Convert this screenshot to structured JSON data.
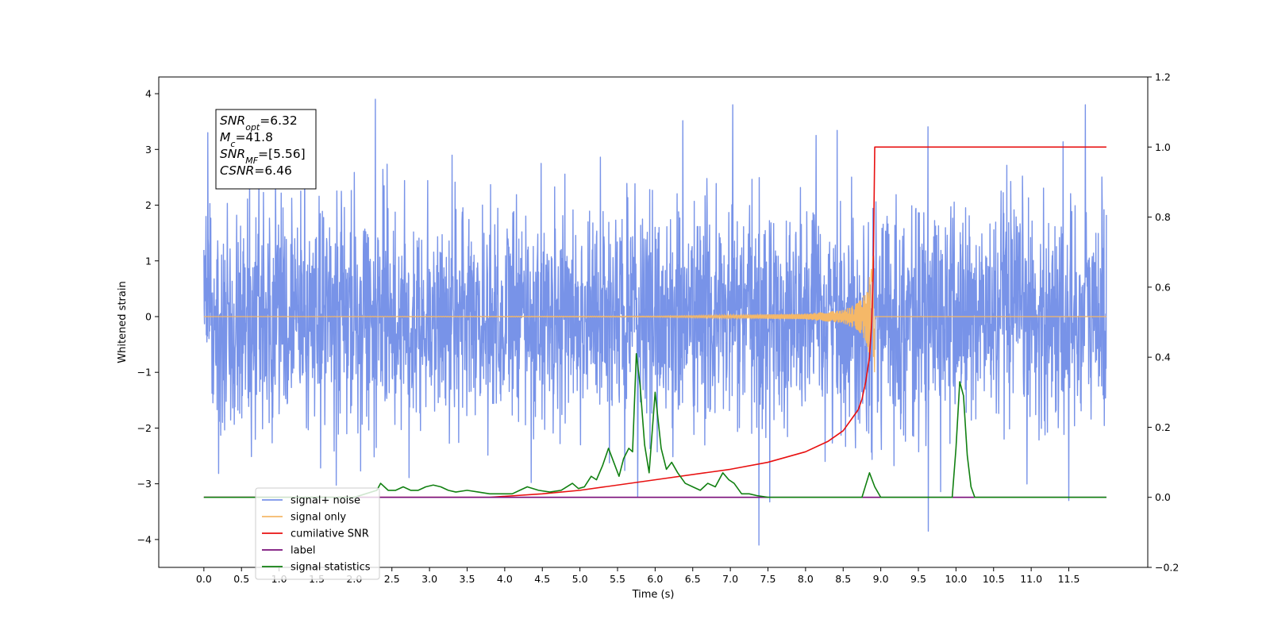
{
  "chart_data": {
    "type": "line",
    "xlabel": "Time (s)",
    "ylabel_left": "Whitened strain",
    "ylabel_right": "",
    "xlim": [
      -0.6,
      12.55
    ],
    "ylim_left": [
      -4.5,
      4.3
    ],
    "ylim_right": [
      -0.2,
      1.2
    ],
    "x_ticks": [
      "0.0",
      "0.5",
      "1.0",
      "1.5",
      "2.0",
      "2.5",
      "3.0",
      "3.5",
      "4.0",
      "4.5",
      "5.0",
      "5.5",
      "6.0",
      "6.5",
      "7.0",
      "7.5",
      "8.0",
      "8.5",
      "9.0",
      "9.5",
      "10.0",
      "10.5",
      "11.0",
      "11.5"
    ],
    "y_ticks_left": [
      "4",
      "3",
      "2",
      "1",
      "0",
      "−1",
      "−2",
      "−3",
      "−4"
    ],
    "y_ticks_right": [
      "1.2",
      "1.0",
      "0.8",
      "0.6",
      "0.4",
      "0.2",
      "0.0",
      "−0.2"
    ],
    "grid": false,
    "legend_position": "lower-left",
    "annotation": {
      "lines": [
        {
          "label": "SNR",
          "sub": "opt",
          "value": "=6.32"
        },
        {
          "label": "M",
          "sub": "c",
          "value": "=41.8"
        },
        {
          "label": "SNR",
          "sub": "MF",
          "value": "=[5.56]"
        },
        {
          "label": "CSNR",
          "sub": "",
          "value": "=6.46"
        }
      ]
    },
    "series": [
      {
        "name": "signal+ noise",
        "color": "#7893e8",
        "axis": "left",
        "kind": "noise",
        "x_range": [
          0.0,
          12.0
        ],
        "std_approx": 1.0,
        "notable_peaks": [
          [
            2.28,
            3.9
          ],
          [
            7.03,
            3.8
          ],
          [
            11.72,
            3.8
          ],
          [
            7.38,
            -4.1
          ],
          [
            9.63,
            -3.85
          ],
          [
            0.05,
            3.3
          ],
          [
            11.5,
            -3.3
          ]
        ]
      },
      {
        "name": "signal only",
        "color": "#f5b868",
        "axis": "left",
        "kind": "chirp",
        "x": [
          0.0,
          6.0,
          7.0,
          8.0,
          8.5,
          8.7,
          8.8,
          8.88,
          8.92,
          9.0,
          12.0
        ],
        "envelope": [
          0.0,
          0.01,
          0.03,
          0.05,
          0.12,
          0.25,
          0.45,
          0.9,
          1.6,
          0.0,
          0.0
        ]
      },
      {
        "name": "cumilative SNR",
        "color": "#e81010",
        "axis": "right",
        "x": [
          0.0,
          3.8,
          4.5,
          5.0,
          6.0,
          7.0,
          7.5,
          8.0,
          8.3,
          8.5,
          8.6,
          8.7,
          8.75,
          8.8,
          8.85,
          8.88,
          8.9,
          8.92,
          12.0
        ],
        "values": [
          0.0,
          0.0,
          0.01,
          0.02,
          0.05,
          0.08,
          0.1,
          0.13,
          0.16,
          0.19,
          0.22,
          0.25,
          0.28,
          0.33,
          0.4,
          0.5,
          0.65,
          1.0,
          1.0
        ]
      },
      {
        "name": "label",
        "color": "#7a0f7a",
        "axis": "right",
        "x": [
          0.0,
          12.0
        ],
        "values": [
          0.0,
          0.0
        ]
      },
      {
        "name": "signal statistics",
        "color": "#118011",
        "axis": "right",
        "x": [
          0.0,
          2.0,
          2.15,
          2.3,
          2.35,
          2.45,
          2.55,
          2.65,
          2.75,
          2.85,
          2.95,
          3.05,
          3.15,
          3.25,
          3.35,
          3.5,
          3.65,
          3.8,
          3.95,
          4.1,
          4.2,
          4.3,
          4.45,
          4.6,
          4.75,
          4.9,
          4.98,
          5.06,
          5.15,
          5.22,
          5.3,
          5.38,
          5.45,
          5.52,
          5.58,
          5.65,
          5.7,
          5.75,
          5.8,
          5.86,
          5.92,
          6.0,
          6.08,
          6.15,
          6.22,
          6.3,
          6.4,
          6.5,
          6.6,
          6.7,
          6.8,
          6.9,
          6.98,
          7.05,
          7.15,
          7.25,
          7.35,
          7.5,
          7.7,
          8.0,
          8.4,
          8.75,
          8.85,
          8.92,
          9.0,
          9.1,
          9.5,
          9.95,
          10.0,
          10.05,
          10.1,
          10.15,
          10.2,
          10.25,
          10.35,
          10.6,
          12.0
        ],
        "values": [
          0.0,
          0.0,
          0.01,
          0.02,
          0.04,
          0.02,
          0.02,
          0.03,
          0.02,
          0.02,
          0.03,
          0.035,
          0.03,
          0.02,
          0.015,
          0.02,
          0.015,
          0.01,
          0.01,
          0.01,
          0.02,
          0.03,
          0.02,
          0.015,
          0.02,
          0.04,
          0.025,
          0.03,
          0.06,
          0.05,
          0.09,
          0.14,
          0.1,
          0.06,
          0.11,
          0.14,
          0.13,
          0.41,
          0.32,
          0.15,
          0.07,
          0.3,
          0.14,
          0.08,
          0.1,
          0.07,
          0.04,
          0.03,
          0.02,
          0.04,
          0.03,
          0.07,
          0.05,
          0.04,
          0.01,
          0.01,
          0.005,
          0.0,
          0.0,
          0.0,
          0.0,
          0.0,
          0.07,
          0.03,
          0.0,
          0.0,
          0.0,
          0.0,
          0.14,
          0.33,
          0.29,
          0.12,
          0.03,
          0.0,
          0.0,
          0.0,
          0.0
        ]
      }
    ]
  }
}
